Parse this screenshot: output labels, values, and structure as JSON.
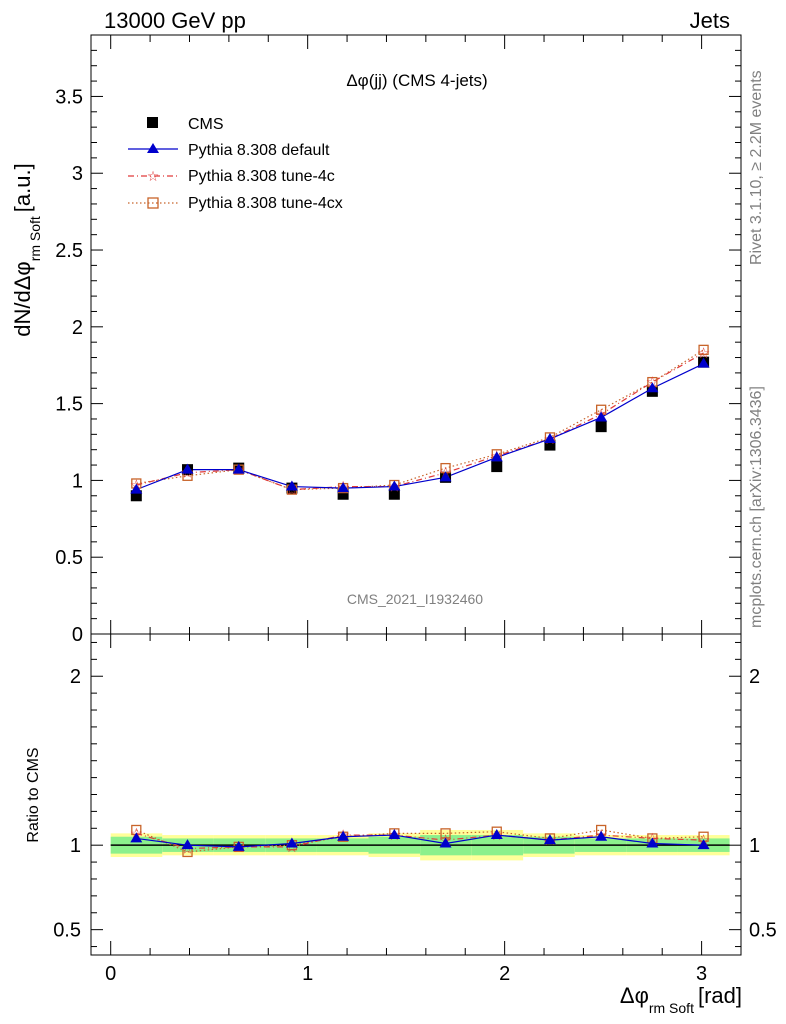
{
  "header": {
    "energy_label": "13000 GeV pp",
    "category_label": "Jets"
  },
  "side_labels": {
    "rivet": "Rivet 3.1.10, ≥ 2.2M events",
    "mcplots": "mcplots.cern.ch [arXiv:1306.3436]"
  },
  "watermark": "CMS_2021_I1932460",
  "colors": {
    "cms": "#000000",
    "default": "#0000cc",
    "tune4c": "#e03a3a",
    "tune4cx": "#c8642a",
    "band_inner": "#8cf08c",
    "band_outer": "#ffff99"
  },
  "chart_data": [
    {
      "panel": "main",
      "type": "scatter",
      "title": "Δφ(jj) (CMS 4-jets)",
      "ylabel": "dN/dΔφ",
      "ylabel_sub": "rm Soft",
      "ylabel_unit": "[a.u.]",
      "xlim": [
        -0.1,
        3.2
      ],
      "ylim": [
        0,
        3.9
      ],
      "yticks": [
        "0",
        "0.5",
        "1",
        "1.5",
        "2",
        "2.5",
        "3",
        "3.5"
      ],
      "legend": [
        "CMS",
        "Pythia 8.308 default",
        "Pythia 8.308 tune-4c",
        "Pythia 8.308 tune-4cx"
      ],
      "x": [
        0.13,
        0.39,
        0.65,
        0.92,
        1.18,
        1.44,
        1.7,
        1.96,
        2.23,
        2.49,
        2.75,
        3.01
      ],
      "series": [
        {
          "name": "CMS",
          "values": [
            0.9,
            1.07,
            1.08,
            0.95,
            0.91,
            0.91,
            1.02,
            1.09,
            1.23,
            1.35,
            1.58,
            1.77
          ]
        },
        {
          "name": "Pythia 8.308 default",
          "values": [
            0.94,
            1.07,
            1.07,
            0.96,
            0.95,
            0.96,
            1.02,
            1.15,
            1.27,
            1.41,
            1.6,
            1.76
          ]
        },
        {
          "name": "Pythia 8.308 tune-4c",
          "values": [
            0.97,
            1.05,
            1.07,
            0.94,
            0.96,
            0.96,
            1.05,
            1.16,
            1.27,
            1.43,
            1.64,
            1.83
          ]
        },
        {
          "name": "Pythia 8.308 tune-4cx",
          "values": [
            0.98,
            1.03,
            1.07,
            0.94,
            0.95,
            0.97,
            1.08,
            1.17,
            1.28,
            1.46,
            1.64,
            1.85
          ]
        }
      ]
    },
    {
      "panel": "ratio",
      "type": "line",
      "ylabel": "Ratio to CMS",
      "xlabel": "Δφ",
      "xlabel_sub": "rm Soft",
      "xlabel_unit": "[rad]",
      "xlim": [
        -0.1,
        3.2
      ],
      "ylim": [
        0.35,
        2.25
      ],
      "xticks": [
        "0",
        "1",
        "2",
        "3"
      ],
      "yticks": [
        "0.5",
        "1",
        "2"
      ],
      "bin_edges": [
        0.0,
        0.262,
        0.524,
        0.785,
        1.047,
        1.309,
        1.571,
        1.833,
        2.094,
        2.356,
        2.618,
        2.88,
        3.142
      ],
      "band_inner": [
        0.05,
        0.04,
        0.04,
        0.04,
        0.04,
        0.05,
        0.06,
        0.06,
        0.05,
        0.04,
        0.04,
        0.04
      ],
      "band_outer": [
        0.07,
        0.06,
        0.06,
        0.06,
        0.06,
        0.07,
        0.09,
        0.09,
        0.07,
        0.06,
        0.06,
        0.06
      ],
      "series": [
        {
          "name": "Pythia 8.308 default",
          "values": [
            1.04,
            1.0,
            0.99,
            1.01,
            1.05,
            1.06,
            1.01,
            1.06,
            1.03,
            1.05,
            1.01,
            1.0
          ]
        },
        {
          "name": "Pythia 8.308 tune-4c",
          "values": [
            1.07,
            0.98,
            0.99,
            0.99,
            1.06,
            1.06,
            1.03,
            1.06,
            1.03,
            1.06,
            1.04,
            1.03
          ]
        },
        {
          "name": "Pythia 8.308 tune-4cx",
          "values": [
            1.09,
            0.96,
            0.99,
            1.0,
            1.05,
            1.07,
            1.07,
            1.08,
            1.04,
            1.09,
            1.04,
            1.05
          ]
        }
      ]
    }
  ]
}
